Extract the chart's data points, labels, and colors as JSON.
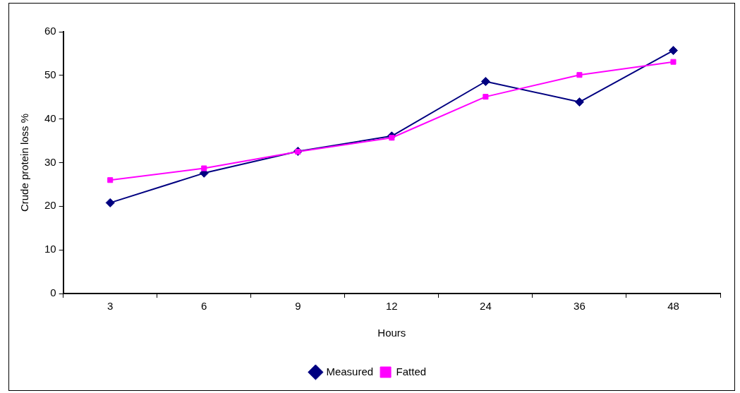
{
  "chart_data": {
    "type": "line",
    "xlabel": "Hours",
    "ylabel": "Crude protein loss %",
    "categories": [
      "3",
      "6",
      "9",
      "12",
      "24",
      "36",
      "48"
    ],
    "series": [
      {
        "name": "Measured",
        "color": "#000080",
        "marker": "diamond",
        "values": [
          20.8,
          27.6,
          32.6,
          36.1,
          48.6,
          43.9,
          55.7
        ]
      },
      {
        "name": "Fatted",
        "color": "#ff00ff",
        "marker": "square",
        "values": [
          26.0,
          28.7,
          32.5,
          35.7,
          45.1,
          50.1,
          53.1
        ]
      }
    ],
    "ylim": [
      0,
      60
    ],
    "yticks": [
      0,
      10,
      20,
      30,
      40,
      50,
      60
    ],
    "grid": false,
    "legend": "bottom",
    "line_style": "solid"
  }
}
